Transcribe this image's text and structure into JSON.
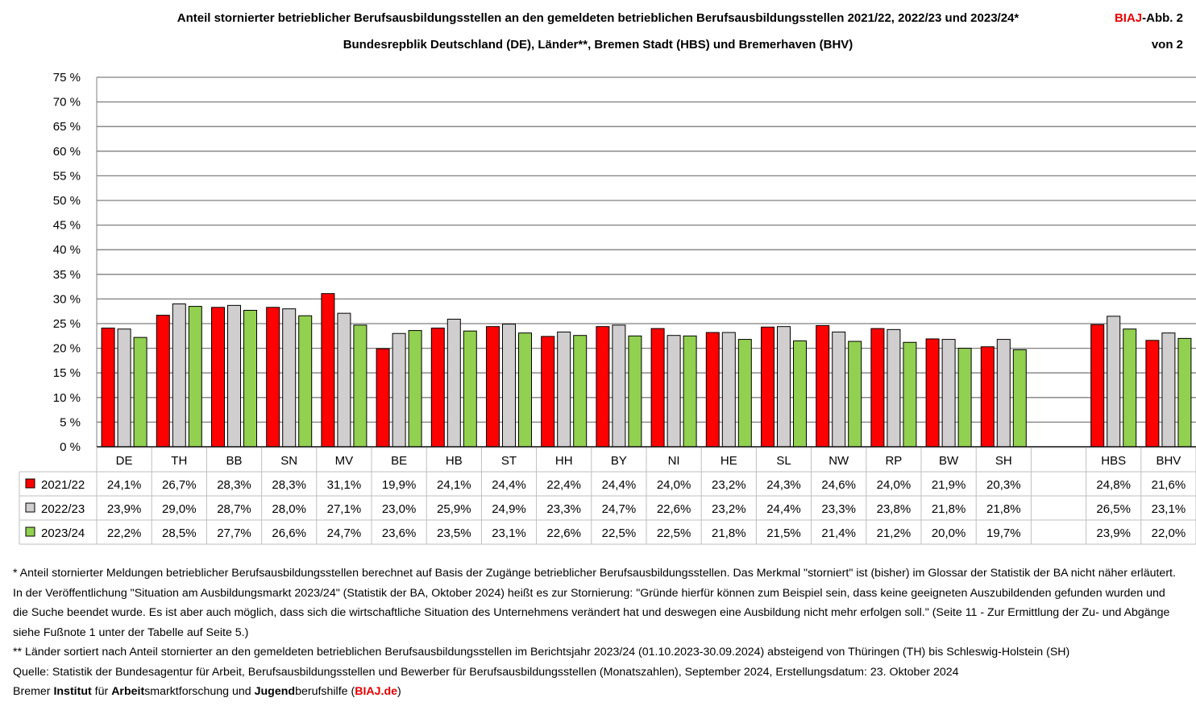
{
  "header": {
    "title": "Anteil stornierter betrieblicher Berufsausbildungsstellen an den gemeldeten betrieblichen Berufsausbildungsstellen 2021/22, 2022/23 und 2023/24*",
    "subtitle": "Bundesrepblik Deutschland (DE), Länder**, Bremen Stadt (HBS) und Bremerhaven (BHV)",
    "badge_brand": "BIAJ",
    "badge_rest": "-Abb. 2",
    "badge_line2": "von 2"
  },
  "chart_data": {
    "type": "bar",
    "categories": [
      "DE",
      "TH",
      "BB",
      "SN",
      "MV",
      "BE",
      "HB",
      "ST",
      "HH",
      "BY",
      "NI",
      "HE",
      "SL",
      "NW",
      "RP",
      "BW",
      "SH",
      "",
      "HBS",
      "BHV"
    ],
    "series": [
      {
        "name": "2021/22",
        "color": "#ff0000",
        "values": [
          24.1,
          26.7,
          28.3,
          28.3,
          31.1,
          19.9,
          24.1,
          24.4,
          22.4,
          24.4,
          24.0,
          23.2,
          24.3,
          24.6,
          24.0,
          21.9,
          20.3,
          null,
          24.8,
          21.6
        ],
        "labels": [
          "24,1%",
          "26,7%",
          "28,3%",
          "28,3%",
          "31,1%",
          "19,9%",
          "24,1%",
          "24,4%",
          "22,4%",
          "24,4%",
          "24,0%",
          "23,2%",
          "24,3%",
          "24,6%",
          "24,0%",
          "21,9%",
          "20,3%",
          "",
          "24,8%",
          "21,6%"
        ]
      },
      {
        "name": "2022/23",
        "color": "#d0cece",
        "values": [
          23.9,
          29.0,
          28.7,
          28.0,
          27.1,
          23.0,
          25.9,
          24.9,
          23.3,
          24.7,
          22.6,
          23.2,
          24.4,
          23.3,
          23.8,
          21.8,
          21.8,
          null,
          26.5,
          23.1
        ],
        "labels": [
          "23,9%",
          "29,0%",
          "28,7%",
          "28,0%",
          "27,1%",
          "23,0%",
          "25,9%",
          "24,9%",
          "23,3%",
          "24,7%",
          "22,6%",
          "23,2%",
          "24,4%",
          "23,3%",
          "23,8%",
          "21,8%",
          "21,8%",
          "",
          "26,5%",
          "23,1%"
        ]
      },
      {
        "name": "2023/24",
        "color": "#92d050",
        "values": [
          22.2,
          28.5,
          27.7,
          26.6,
          24.7,
          23.6,
          23.5,
          23.1,
          22.6,
          22.5,
          22.5,
          21.8,
          21.5,
          21.4,
          21.2,
          20.0,
          19.7,
          null,
          23.9,
          22.0
        ],
        "labels": [
          "22,2%",
          "28,5%",
          "27,7%",
          "26,6%",
          "24,7%",
          "23,6%",
          "23,5%",
          "23,1%",
          "22,6%",
          "22,5%",
          "22,5%",
          "21,8%",
          "21,5%",
          "21,4%",
          "21,2%",
          "20,0%",
          "19,7%",
          "",
          "23,9%",
          "22,0%"
        ]
      }
    ],
    "y_ticks": [
      "0 %",
      "5 %",
      "10 %",
      "15 %",
      "20 %",
      "25 %",
      "30 %",
      "35 %",
      "40 %",
      "45 %",
      "50 %",
      "55 %",
      "60 %",
      "65 %",
      "70 %",
      "75 %"
    ],
    "ylim": [
      0,
      75
    ],
    "grid": true,
    "legend": "data-table"
  },
  "footnotes": {
    "note1": "* Anteil stornierter Meldungen betrieblicher Berufsausbildungsstellen berechnet auf  Basis der Zugänge betrieblicher Berufsausbildungsstellen. Das Merkmal \"storniert\" ist (bisher) im Glossar der Statistik der BA nicht näher erläutert. In der Veröffentlichung \"Situation am Ausbildungsmarkt 2023/24\" (Statistik der BA, Oktober 2024) heißt es zur Stornierung: \"Gründe hierfür können zum Beispiel sein, dass keine geeigneten Auszubildenden gefunden wurden und die Suche beendet wurde. Es ist aber auch möglich, dass sich die wirtschaftliche Situation des Unternehmens verändert hat und deswegen eine Ausbildung nicht mehr erfolgen soll.\" (Seite 11 - Zur Ermittlung der Zu- und Abgänge siehe Fußnote 1 unter der Tabelle auf Seite 5.)",
    "note2": "** Länder sortiert nach Anteil stornierter an den gemeldeten betrieblichen Berufsausbildungsstellen im Berichtsjahr 2023/24 (01.10.2023-30.09.2024) absteigend von Thüringen (TH) bis Schleswig-Holstein (SH)",
    "source": "Quelle: Statistik der Bundesagentur für Arbeit, Berufsausbildungsstellen und Bewerber für Berufsausbildungsstellen (Monatszahlen), September 2024, Erstellungsdatum: 23. Oktober 2024",
    "org_1": "Bremer ",
    "org_2": "Institut",
    "org_3": " für ",
    "org_4": "Arbeit",
    "org_5": "smarktforschung und ",
    "org_6": "Jugend",
    "org_7": "berufshilfe (",
    "org_8": "BIAJ.de",
    "org_9": ")"
  }
}
